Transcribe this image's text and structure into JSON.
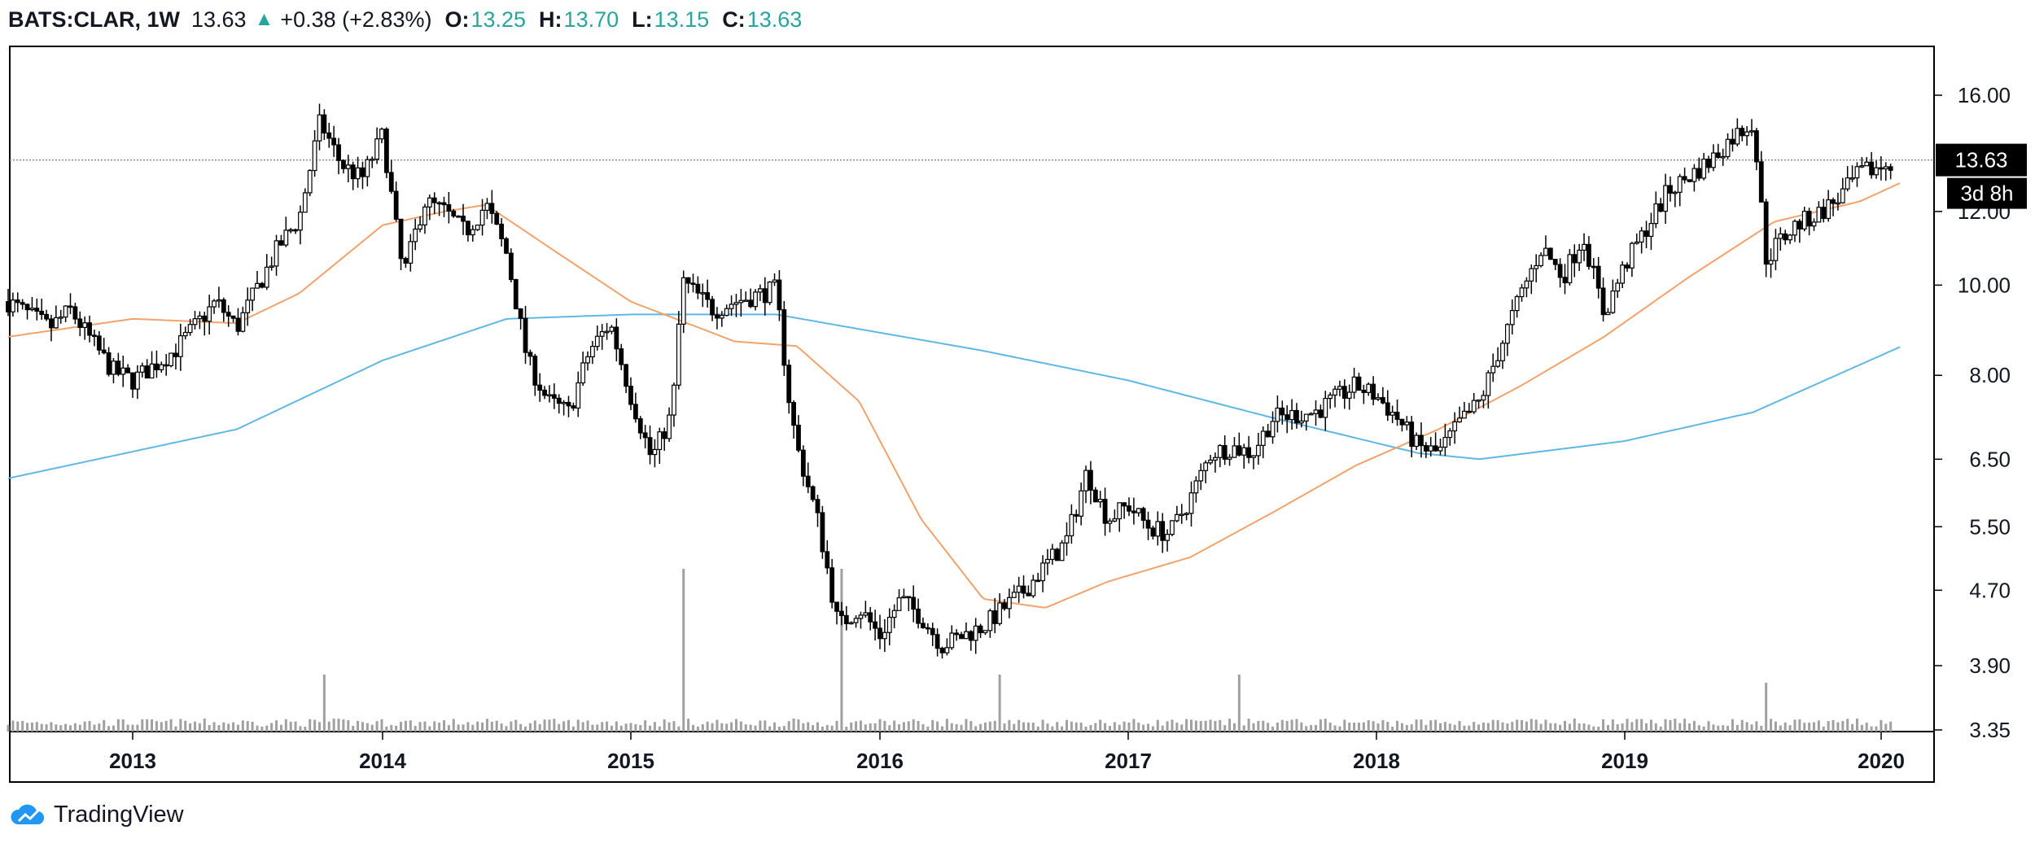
{
  "header": {
    "symbol": "BATS:CLAR, 1W",
    "last": "13.63",
    "arrow": "▲",
    "change": "+0.38 (+2.83%)",
    "o_label": "O:",
    "o_value": "13.25",
    "h_label": "H:",
    "h_value": "13.70",
    "l_label": "L:",
    "l_value": "13.15",
    "c_label": "C:",
    "c_value": "13.63"
  },
  "price_badge": "13.63",
  "countdown_badge": "3d 8h",
  "brand": "TradingView",
  "colors": {
    "up_candle": "#ffffff",
    "down_candle": "#000000",
    "ma_short": "#f2a26b",
    "ma_long": "#5fb8e3",
    "volume": "#a0a0a0",
    "accent_green": "#26a69a"
  },
  "chart_data": {
    "type": "candlestick",
    "interval": "1W",
    "y_scale": "log",
    "y_ticks": [
      "16.00",
      "12.00",
      "10.00",
      "8.00",
      "6.50",
      "5.50",
      "4.70",
      "3.90",
      "3.35"
    ],
    "x_ticks": [
      "2013",
      "2014",
      "2015",
      "2016",
      "2017",
      "2018",
      "2019",
      "2020"
    ],
    "price_anchors": [
      [
        "2012-07",
        9.6
      ],
      [
        "2012-09",
        9.0
      ],
      [
        "2012-10",
        9.4
      ],
      [
        "2012-12",
        8.1
      ],
      [
        "2013-01",
        7.9
      ],
      [
        "2013-03",
        8.5
      ],
      [
        "2013-05",
        9.6
      ],
      [
        "2013-06",
        9.0
      ],
      [
        "2013-08",
        11.0
      ],
      [
        "2013-09",
        11.8
      ],
      [
        "2013-10",
        15.0
      ],
      [
        "2013-11",
        13.5
      ],
      [
        "2013-12",
        13.0
      ],
      [
        "2014-01",
        14.5
      ],
      [
        "2014-02",
        10.2
      ],
      [
        "2014-03",
        12.3
      ],
      [
        "2014-04",
        12.0
      ],
      [
        "2014-05",
        11.4
      ],
      [
        "2014-06",
        12.2
      ],
      [
        "2014-07",
        10.8
      ],
      [
        "2014-08",
        8.3
      ],
      [
        "2014-09",
        7.5
      ],
      [
        "2014-10",
        7.3
      ],
      [
        "2014-11",
        8.5
      ],
      [
        "2014-12",
        9.1
      ],
      [
        "2015-01",
        7.6
      ],
      [
        "2015-02",
        6.5
      ],
      [
        "2015-03",
        7.3
      ],
      [
        "2015-03-15",
        10.1
      ],
      [
        "2015-05",
        9.4
      ],
      [
        "2015-06",
        9.6
      ],
      [
        "2015-08",
        9.9
      ],
      [
        "2015-08-20",
        7.5
      ],
      [
        "2015-09",
        6.7
      ],
      [
        "2015-10",
        5.6
      ],
      [
        "2015-11",
        4.3
      ],
      [
        "2015-12",
        4.5
      ],
      [
        "2016-01",
        4.2
      ],
      [
        "2016-02",
        4.6
      ],
      [
        "2016-03",
        4.4
      ],
      [
        "2016-04",
        4.1
      ],
      [
        "2016-05",
        4.2
      ],
      [
        "2016-06",
        4.3
      ],
      [
        "2016-07",
        4.5
      ],
      [
        "2016-08",
        4.7
      ],
      [
        "2016-09",
        5.0
      ],
      [
        "2016-10",
        5.3
      ],
      [
        "2016-11",
        6.3
      ],
      [
        "2016-12",
        5.6
      ],
      [
        "2017-01",
        5.8
      ],
      [
        "2017-02",
        5.5
      ],
      [
        "2017-03",
        5.4
      ],
      [
        "2017-04",
        5.9
      ],
      [
        "2017-05",
        6.6
      ],
      [
        "2017-06",
        6.7
      ],
      [
        "2017-07",
        6.6
      ],
      [
        "2017-08",
        7.2
      ],
      [
        "2017-10",
        7.3
      ],
      [
        "2017-12",
        7.8
      ],
      [
        "2018-01",
        7.6
      ],
      [
        "2018-02",
        7.2
      ],
      [
        "2018-03",
        6.7
      ],
      [
        "2018-04",
        6.6
      ],
      [
        "2018-05",
        7.1
      ],
      [
        "2018-06",
        7.5
      ],
      [
        "2018-07",
        8.6
      ],
      [
        "2018-08",
        9.8
      ],
      [
        "2018-09",
        11.0
      ],
      [
        "2018-10",
        10.2
      ],
      [
        "2018-11",
        11.3
      ],
      [
        "2018-12",
        9.3
      ],
      [
        "2019-01",
        10.5
      ],
      [
        "2019-02",
        11.5
      ],
      [
        "2019-03",
        12.6
      ],
      [
        "2019-05",
        13.6
      ],
      [
        "2019-06",
        14.4
      ],
      [
        "2019-07",
        15.0
      ],
      [
        "2019-07-20",
        10.6
      ],
      [
        "2019-08",
        11.0
      ],
      [
        "2019-09",
        11.6
      ],
      [
        "2019-10",
        11.9
      ],
      [
        "2019-11",
        12.4
      ],
      [
        "2019-12",
        13.2
      ],
      [
        "2020-01",
        13.4
      ],
      [
        "2020-01-20",
        13.63
      ]
    ],
    "ma_short_anchors": [
      [
        "2012-07",
        8.8
      ],
      [
        "2013-01",
        9.2
      ],
      [
        "2013-06",
        9.1
      ],
      [
        "2013-09",
        9.8
      ],
      [
        "2014-01",
        11.6
      ],
      [
        "2014-04",
        12.0
      ],
      [
        "2014-06",
        12.2
      ],
      [
        "2014-09",
        11.0
      ],
      [
        "2015-01",
        9.6
      ],
      [
        "2015-06",
        8.7
      ],
      [
        "2015-09",
        8.6
      ],
      [
        "2015-12",
        7.5
      ],
      [
        "2016-03",
        5.6
      ],
      [
        "2016-06",
        4.6
      ],
      [
        "2016-09",
        4.5
      ],
      [
        "2016-12",
        4.8
      ],
      [
        "2017-04",
        5.1
      ],
      [
        "2017-08",
        5.7
      ],
      [
        "2017-12",
        6.4
      ],
      [
        "2018-04",
        7.0
      ],
      [
        "2018-08",
        7.8
      ],
      [
        "2018-12",
        8.8
      ],
      [
        "2019-04",
        10.2
      ],
      [
        "2019-08",
        11.7
      ],
      [
        "2019-12",
        12.3
      ],
      [
        "2020-02",
        12.9
      ]
    ],
    "ma_long_anchors": [
      [
        "2012-07",
        6.2
      ],
      [
        "2013-06",
        7.0
      ],
      [
        "2014-01",
        8.3
      ],
      [
        "2014-07",
        9.2
      ],
      [
        "2015-01",
        9.3
      ],
      [
        "2015-08",
        9.3
      ],
      [
        "2016-06",
        8.5
      ],
      [
        "2017-01",
        7.9
      ],
      [
        "2017-08",
        7.2
      ],
      [
        "2018-03",
        6.6
      ],
      [
        "2018-06",
        6.5
      ],
      [
        "2019-01",
        6.8
      ],
      [
        "2019-07",
        7.3
      ],
      [
        "2020-02",
        8.6
      ]
    ],
    "volume_spikes": [
      [
        "2015-03-15",
        1.0
      ],
      [
        "2015-11-05",
        1.0
      ],
      [
        "2013-10-10",
        0.35
      ],
      [
        "2016-06-25",
        0.35
      ],
      [
        "2017-06-10",
        0.35
      ],
      [
        "2019-07-20",
        0.3
      ]
    ]
  }
}
